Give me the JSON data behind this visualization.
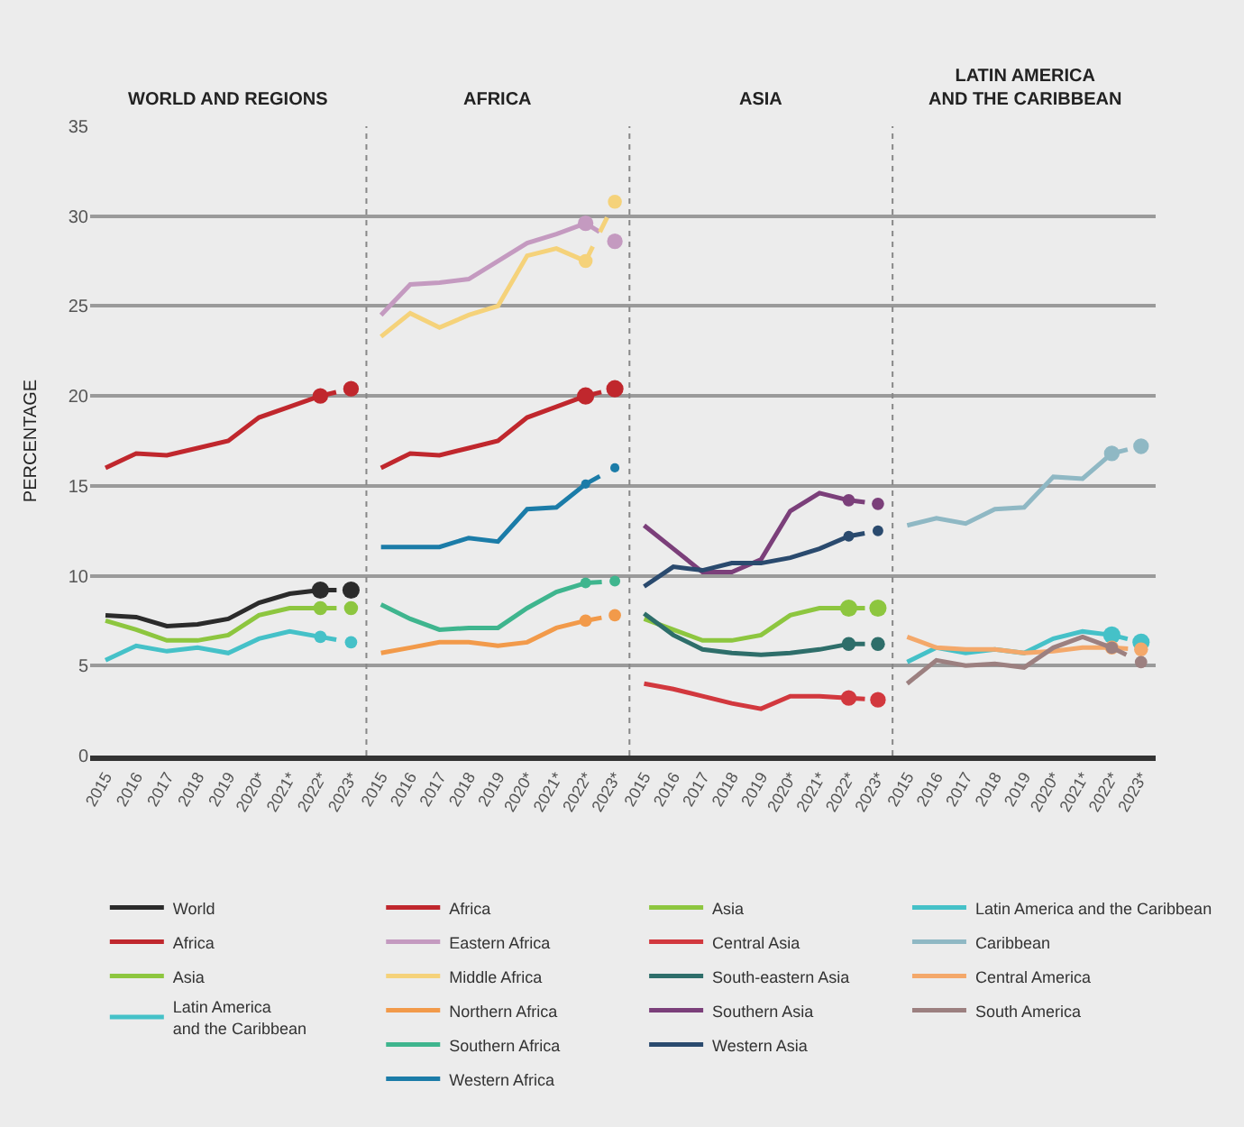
{
  "chart_data": [
    {
      "type": "line",
      "title": "WORLD AND REGIONS",
      "ylabel": "PERCENTAGE",
      "categories": [
        "2015",
        "2016",
        "2017",
        "2018",
        "2019",
        "2020*",
        "2021*",
        "2022*",
        "2023*"
      ],
      "ylim": [
        0,
        35
      ],
      "yticks": [
        0,
        5,
        10,
        15,
        20,
        25,
        30,
        35
      ],
      "grid": "y",
      "legend": "bottom",
      "series": [
        {
          "name": "World",
          "color": "#2b2b2b",
          "values": [
            7.8,
            7.7,
            7.2,
            7.3,
            7.6,
            8.5,
            9.0,
            9.2,
            null
          ]
        },
        {
          "color": "#2b2b2b",
          "line_style": "dashed",
          "marker": "circle",
          "values": [
            null,
            null,
            null,
            null,
            null,
            null,
            null,
            9.2,
            9.2
          ]
        },
        {
          "name": "Africa",
          "color": "#c0272d",
          "values": [
            16.0,
            16.8,
            16.7,
            17.1,
            17.5,
            18.8,
            19.4,
            20.0,
            null
          ]
        },
        {
          "color": "#c0272d",
          "line_style": "dashed",
          "marker": "circle",
          "values": [
            null,
            null,
            null,
            null,
            null,
            null,
            null,
            20.0,
            20.4
          ]
        },
        {
          "name": "Asia",
          "color": "#8dc63f",
          "values": [
            7.5,
            7.0,
            6.4,
            6.4,
            6.7,
            7.8,
            8.2,
            8.2,
            null
          ]
        },
        {
          "color": "#8dc63f",
          "line_style": "dashed",
          "marker": "circle",
          "values": [
            null,
            null,
            null,
            null,
            null,
            null,
            null,
            8.2,
            8.2
          ]
        },
        {
          "name": "Latin America\nand the Caribbean",
          "color": "#45c1c8",
          "values": [
            5.3,
            6.1,
            5.8,
            6.0,
            5.7,
            6.5,
            6.9,
            6.6,
            null
          ]
        },
        {
          "color": "#45c1c8",
          "line_style": "dashed",
          "marker": "circle",
          "values": [
            null,
            null,
            null,
            null,
            null,
            null,
            null,
            6.6,
            6.3
          ]
        }
      ]
    },
    {
      "type": "line",
      "title": "AFRICA",
      "categories": [
        "2015",
        "2016",
        "2017",
        "2018",
        "2019",
        "2020*",
        "2021*",
        "2022*",
        "2023*"
      ],
      "ylim": [
        0,
        35
      ],
      "yticks": [
        0,
        5,
        10,
        15,
        20,
        25,
        30,
        35
      ],
      "grid": "y",
      "legend": "bottom",
      "tick_labels": "x",
      "series": [
        {
          "name": "Africa",
          "color": "#c0272d",
          "values": [
            16.0,
            16.8,
            16.7,
            17.1,
            17.5,
            18.8,
            19.4,
            20.0,
            null
          ]
        },
        {
          "color": "#c0272d",
          "line_style": "dashed",
          "marker": "circle",
          "values": [
            null,
            null,
            null,
            null,
            null,
            null,
            null,
            20.0,
            20.4
          ]
        },
        {
          "name": "Eastern Africa",
          "color": "#c49ac0",
          "values": [
            24.5,
            26.2,
            26.3,
            26.5,
            27.5,
            28.5,
            29.0,
            29.6,
            null
          ]
        },
        {
          "color": "#c49ac0",
          "line_style": "dashed",
          "marker": "circle",
          "values": [
            null,
            null,
            null,
            null,
            null,
            null,
            null,
            29.6,
            28.6
          ]
        },
        {
          "name": "Middle Africa",
          "color": "#f5d27a",
          "values": [
            23.3,
            24.6,
            23.8,
            24.5,
            25.0,
            27.8,
            28.2,
            27.5,
            null
          ]
        },
        {
          "color": "#f5d27a",
          "line_style": "dashed",
          "marker": "circle",
          "values": [
            null,
            null,
            null,
            null,
            null,
            null,
            null,
            27.5,
            30.8
          ]
        },
        {
          "name": "Northern Africa",
          "color": "#f29a4a",
          "values": [
            5.7,
            6.0,
            6.3,
            6.3,
            6.1,
            6.3,
            7.1,
            7.5,
            null
          ]
        },
        {
          "color": "#f29a4a",
          "line_style": "dashed",
          "marker": "circle",
          "values": [
            null,
            null,
            null,
            null,
            null,
            null,
            null,
            7.5,
            7.8
          ]
        },
        {
          "name": "Southern Africa",
          "color": "#3fb58e",
          "values": [
            8.4,
            7.6,
            7.0,
            7.1,
            7.1,
            8.2,
            9.1,
            9.6,
            null
          ]
        },
        {
          "color": "#3fb58e",
          "line_style": "dashed",
          "marker": "circle",
          "values": [
            null,
            null,
            null,
            null,
            null,
            null,
            null,
            9.6,
            9.7
          ]
        },
        {
          "name": "Western Africa",
          "color": "#1b7ca8",
          "values": [
            11.6,
            11.6,
            11.6,
            12.1,
            11.9,
            13.7,
            13.8,
            15.1,
            null
          ]
        },
        {
          "color": "#1b7ca8",
          "line_style": "dashed",
          "marker": "circle",
          "values": [
            null,
            null,
            null,
            null,
            null,
            null,
            null,
            15.1,
            16.0
          ]
        }
      ]
    },
    {
      "type": "line",
      "title": "ASIA",
      "categories": [
        "2015",
        "2016",
        "2017",
        "2018",
        "2019",
        "2020*",
        "2021*",
        "2022*",
        "2023*"
      ],
      "ylim": [
        0,
        35
      ],
      "yticks": [
        0,
        5,
        10,
        15,
        20,
        25,
        30,
        35
      ],
      "grid": "y",
      "legend": "bottom",
      "tick_labels": "x",
      "series": [
        {
          "name": "Asia",
          "color": "#8dc63f",
          "values": [
            7.6,
            7.0,
            6.4,
            6.4,
            6.7,
            7.8,
            8.2,
            8.2,
            null
          ]
        },
        {
          "color": "#8dc63f",
          "line_style": "dashed",
          "marker": "circle",
          "values": [
            null,
            null,
            null,
            null,
            null,
            null,
            null,
            8.2,
            8.2
          ]
        },
        {
          "name": "Central Asia",
          "color": "#d2383e",
          "values": [
            4.0,
            3.7,
            3.3,
            2.9,
            2.6,
            3.3,
            3.3,
            3.2,
            null
          ]
        },
        {
          "color": "#d2383e",
          "line_style": "dashed",
          "marker": "circle",
          "values": [
            null,
            null,
            null,
            null,
            null,
            null,
            null,
            3.2,
            3.1
          ]
        },
        {
          "name": "South-eastern Asia",
          "color": "#2e6e6a",
          "values": [
            7.9,
            6.7,
            5.9,
            5.7,
            5.6,
            5.7,
            5.9,
            6.2,
            null
          ]
        },
        {
          "color": "#2e6e6a",
          "line_style": "dashed",
          "marker": "circle",
          "values": [
            null,
            null,
            null,
            null,
            null,
            null,
            null,
            6.2,
            6.2
          ]
        },
        {
          "name": "Southern Asia",
          "color": "#7b3f7a",
          "values": [
            12.8,
            11.5,
            10.2,
            10.2,
            10.9,
            13.6,
            14.6,
            14.2,
            null
          ]
        },
        {
          "color": "#7b3f7a",
          "line_style": "dashed",
          "marker": "circle",
          "values": [
            null,
            null,
            null,
            null,
            null,
            null,
            null,
            14.2,
            14.0
          ]
        },
        {
          "name": "Western Asia",
          "color": "#2a4a6e",
          "values": [
            9.4,
            10.5,
            10.3,
            10.7,
            10.7,
            11.0,
            11.5,
            12.2,
            null
          ]
        },
        {
          "color": "#2a4a6e",
          "line_style": "dashed",
          "marker": "circle",
          "values": [
            null,
            null,
            null,
            null,
            null,
            null,
            null,
            12.2,
            12.5
          ]
        }
      ]
    },
    {
      "type": "line",
      "title": "LATIN AMERICA\nAND THE CARIBBEAN",
      "categories": [
        "2015",
        "2016",
        "2017",
        "2018",
        "2019",
        "2020*",
        "2021*",
        "2022*",
        "2023*"
      ],
      "ylim": [
        0,
        35
      ],
      "yticks": [
        0,
        5,
        10,
        15,
        20,
        25,
        30,
        35
      ],
      "grid": "y",
      "legend": "bottom",
      "tick_labels": "x",
      "series": [
        {
          "name": "Latin America and the Caribbean",
          "color": "#45c1c8",
          "values": [
            5.2,
            6.0,
            5.7,
            5.9,
            5.7,
            6.5,
            6.9,
            6.7,
            null
          ]
        },
        {
          "color": "#45c1c8",
          "line_style": "dashed",
          "marker": "circle",
          "values": [
            null,
            null,
            null,
            null,
            null,
            null,
            null,
            6.7,
            6.3
          ]
        },
        {
          "name": "Caribbean",
          "color": "#8fb8c4",
          "values": [
            12.8,
            13.2,
            12.9,
            13.7,
            13.8,
            15.5,
            15.4,
            16.8,
            null
          ]
        },
        {
          "color": "#8fb8c4",
          "line_style": "dashed",
          "marker": "circle",
          "values": [
            null,
            null,
            null,
            null,
            null,
            null,
            null,
            16.8,
            17.2
          ]
        },
        {
          "name": "Central America",
          "color": "#f4a86a",
          "values": [
            6.6,
            6.0,
            5.9,
            5.9,
            5.7,
            5.8,
            6.0,
            6.0,
            null
          ]
        },
        {
          "color": "#f4a86a",
          "line_style": "dashed",
          "marker": "circle",
          "values": [
            null,
            null,
            null,
            null,
            null,
            null,
            null,
            6.0,
            5.9
          ]
        },
        {
          "name": "South America",
          "color": "#9c8080",
          "values": [
            4.0,
            5.3,
            5.0,
            5.1,
            4.9,
            6.0,
            6.6,
            6.0,
            null
          ]
        },
        {
          "color": "#9c8080",
          "line_style": "dashed",
          "marker": "circle",
          "values": [
            null,
            null,
            null,
            null,
            null,
            null,
            null,
            6.0,
            5.2
          ]
        }
      ]
    }
  ]
}
